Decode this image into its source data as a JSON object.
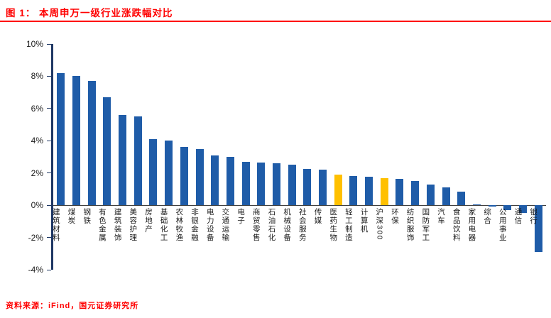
{
  "header": {
    "title": "图 1： 本周申万一级行业涨跌幅对比"
  },
  "footer": {
    "source": "资料来源：iFind，国元证券研究所"
  },
  "chart_data": {
    "type": "bar",
    "title": "本周申万一级行业涨跌幅对比",
    "xlabel": "",
    "ylabel": "",
    "ylim": [
      -4,
      10
    ],
    "ytick_step": 2,
    "ytick_labels": [
      "10%",
      "8%",
      "6%",
      "4%",
      "2%",
      "0%",
      "-2%",
      "-4%"
    ],
    "grid": false,
    "legend": "none",
    "categories": [
      "建筑材料",
      "煤炭",
      "钢铁",
      "有色金属",
      "建筑装饰",
      "美容护理",
      "房地产",
      "基础化工",
      "农林牧渔",
      "非银金融",
      "电力设备",
      "交通运输",
      "电子",
      "商贸零售",
      "石油石化",
      "机械设备",
      "社会服务",
      "传媒",
      "医药生物",
      "轻工制造",
      "计算机",
      "沪深300",
      "环保",
      "纺织服饰",
      "国防军工",
      "汽车",
      "食品饮料",
      "家用电器",
      "综合",
      "公用事业",
      "通信",
      "银行"
    ],
    "values": [
      8.2,
      8.0,
      7.7,
      6.7,
      5.6,
      5.5,
      4.1,
      4.0,
      3.6,
      3.5,
      3.1,
      3.0,
      2.7,
      2.65,
      2.6,
      2.5,
      2.25,
      2.2,
      1.9,
      1.8,
      1.75,
      1.7,
      1.65,
      1.5,
      1.3,
      1.1,
      0.85,
      0.05,
      -0.1,
      -0.3,
      -0.5,
      -2.9
    ],
    "highlight_indices": [
      18,
      21
    ],
    "colors": {
      "bar": "#1F5CA8",
      "highlight": "#FFC000",
      "axis": "#1F3864",
      "zero_line": "#404040",
      "accent_red": "#FF0000"
    }
  }
}
